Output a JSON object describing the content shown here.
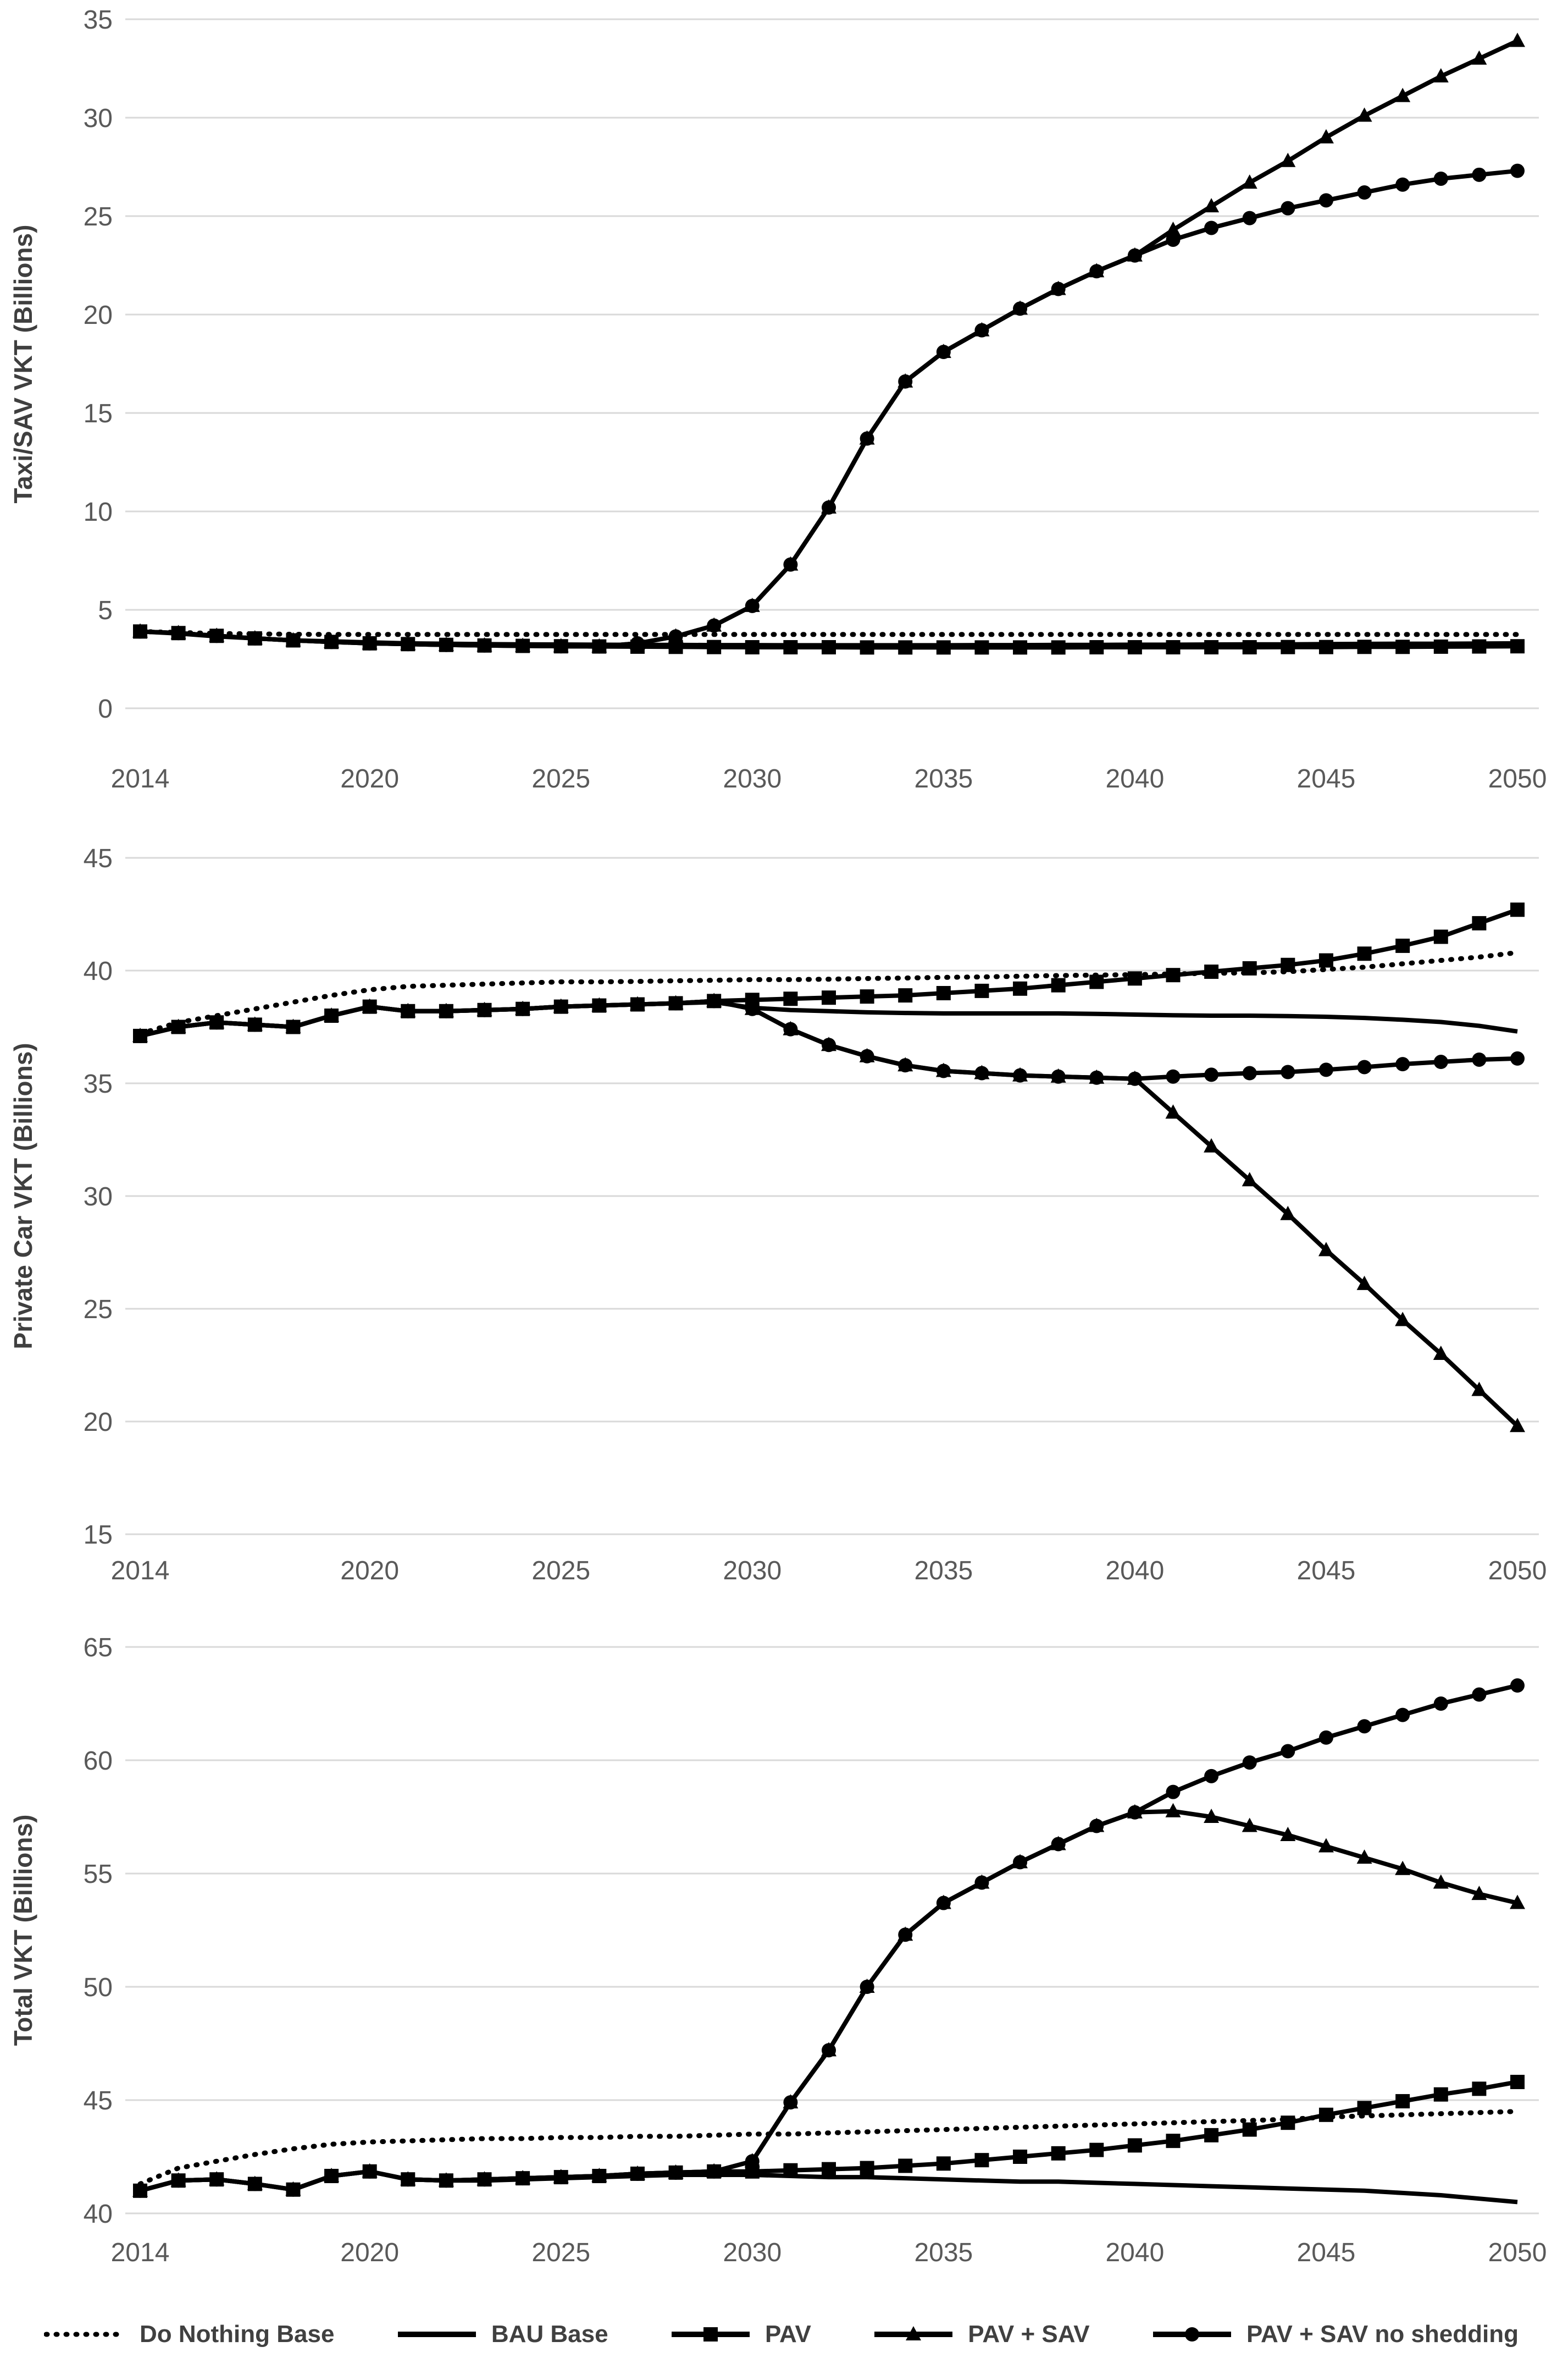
{
  "colors": {
    "series_line": "#000000",
    "gridline": "#d9d9d9",
    "tick_text": "#595959",
    "axis_title_text": "#3f3f3f",
    "legend_text": "#404040",
    "background": "#ffffff"
  },
  "legend": {
    "items": [
      {
        "label": "Do Nothing Base",
        "marker": "none",
        "dash": true
      },
      {
        "label": "BAU Base",
        "marker": "none",
        "dash": false
      },
      {
        "label": "PAV",
        "marker": "square",
        "dash": false
      },
      {
        "label": "PAV + SAV",
        "marker": "triangle",
        "dash": false
      },
      {
        "label": "PAV + SAV no shedding",
        "marker": "circle",
        "dash": false
      }
    ]
  },
  "chart_data": [
    {
      "type": "line",
      "title": "",
      "xlabel": "",
      "ylabel": "Taxi/SAV VKT (Billions)",
      "ylim": [
        0,
        35
      ],
      "yticks": [
        0,
        5,
        10,
        15,
        20,
        25,
        30,
        35
      ],
      "xticks": [
        2014,
        2020,
        2025,
        2030,
        2035,
        2040,
        2045,
        2050
      ],
      "x": [
        2014,
        2015,
        2016,
        2017,
        2018,
        2019,
        2020,
        2021,
        2022,
        2023,
        2024,
        2025,
        2026,
        2027,
        2028,
        2029,
        2030,
        2031,
        2032,
        2033,
        2034,
        2035,
        2036,
        2037,
        2038,
        2039,
        2040,
        2041,
        2042,
        2043,
        2044,
        2045,
        2046,
        2047,
        2048,
        2049,
        2050
      ],
      "grid": true,
      "legend_position": "bottom-shared",
      "series": [
        {
          "name": "Do Nothing Base",
          "marker": "none",
          "dash": true,
          "values": [
            3.9,
            3.85,
            3.8,
            3.78,
            3.76,
            3.75,
            3.75,
            3.75,
            3.75,
            3.75,
            3.75,
            3.75,
            3.75,
            3.75,
            3.75,
            3.75,
            3.75,
            3.75,
            3.75,
            3.75,
            3.75,
            3.75,
            3.75,
            3.75,
            3.75,
            3.75,
            3.75,
            3.75,
            3.75,
            3.75,
            3.75,
            3.75,
            3.75,
            3.75,
            3.75,
            3.75,
            3.75
          ]
        },
        {
          "name": "BAU Base",
          "marker": "none",
          "dash": false,
          "values": [
            3.9,
            3.8,
            3.65,
            3.55,
            3.45,
            3.4,
            3.35,
            3.3,
            3.28,
            3.26,
            3.25,
            3.24,
            3.23,
            3.22,
            3.22,
            3.21,
            3.21,
            3.2,
            3.2,
            3.2,
            3.2,
            3.2,
            3.21,
            3.21,
            3.22,
            3.22,
            3.23,
            3.23,
            3.24,
            3.25,
            3.25,
            3.26,
            3.27,
            3.28,
            3.28,
            3.29,
            3.3
          ]
        },
        {
          "name": "PAV",
          "marker": "square",
          "dash": false,
          "values": [
            3.9,
            3.82,
            3.68,
            3.55,
            3.45,
            3.37,
            3.3,
            3.26,
            3.22,
            3.19,
            3.17,
            3.15,
            3.14,
            3.13,
            3.12,
            3.11,
            3.1,
            3.1,
            3.1,
            3.09,
            3.09,
            3.09,
            3.09,
            3.09,
            3.09,
            3.1,
            3.1,
            3.1,
            3.1,
            3.1,
            3.11,
            3.11,
            3.12,
            3.12,
            3.13,
            3.14,
            3.15
          ]
        },
        {
          "name": "PAV + SAV",
          "marker": "triangle",
          "dash": false,
          "values": [
            3.9,
            3.82,
            3.68,
            3.55,
            3.45,
            3.37,
            3.3,
            3.26,
            3.22,
            3.19,
            3.17,
            3.15,
            3.14,
            3.3,
            3.65,
            4.2,
            5.2,
            7.3,
            10.2,
            13.7,
            16.6,
            18.1,
            19.2,
            20.3,
            21.3,
            22.2,
            23.0,
            24.3,
            25.5,
            26.7,
            27.8,
            29.0,
            30.1,
            31.1,
            32.1,
            33.0,
            33.9
          ]
        },
        {
          "name": "PAV + SAV no shedding",
          "marker": "circle",
          "dash": false,
          "values": [
            3.9,
            3.82,
            3.68,
            3.55,
            3.45,
            3.37,
            3.3,
            3.26,
            3.22,
            3.19,
            3.17,
            3.15,
            3.14,
            3.3,
            3.65,
            4.2,
            5.2,
            7.3,
            10.2,
            13.7,
            16.6,
            18.1,
            19.2,
            20.3,
            21.3,
            22.2,
            23.0,
            23.8,
            24.4,
            24.9,
            25.4,
            25.8,
            26.2,
            26.6,
            26.9,
            27.1,
            27.3
          ]
        }
      ]
    },
    {
      "type": "line",
      "title": "",
      "xlabel": "",
      "ylabel": "Private Car VKT (Billions)",
      "ylim": [
        15,
        45
      ],
      "yticks": [
        15,
        20,
        25,
        30,
        35,
        40,
        45
      ],
      "xticks": [
        2014,
        2020,
        2025,
        2030,
        2035,
        2040,
        2045,
        2050
      ],
      "x": [
        2014,
        2015,
        2016,
        2017,
        2018,
        2019,
        2020,
        2021,
        2022,
        2023,
        2024,
        2025,
        2026,
        2027,
        2028,
        2029,
        2030,
        2031,
        2032,
        2033,
        2034,
        2035,
        2036,
        2037,
        2038,
        2039,
        2040,
        2041,
        2042,
        2043,
        2044,
        2045,
        2046,
        2047,
        2048,
        2049,
        2050
      ],
      "grid": true,
      "legend_position": "bottom-shared",
      "series": [
        {
          "name": "Do Nothing Base",
          "marker": "none",
          "dash": true,
          "values": [
            37.2,
            37.7,
            38.0,
            38.3,
            38.6,
            38.9,
            39.15,
            39.3,
            39.35,
            39.4,
            39.45,
            39.5,
            39.5,
            39.52,
            39.55,
            39.57,
            39.6,
            39.6,
            39.62,
            39.65,
            39.67,
            39.7,
            39.72,
            39.75,
            39.78,
            39.8,
            39.82,
            39.85,
            39.88,
            39.9,
            39.95,
            40.05,
            40.15,
            40.3,
            40.45,
            40.6,
            40.8
          ]
        },
        {
          "name": "BAU Base",
          "marker": "none",
          "dash": false,
          "values": [
            37.1,
            37.5,
            37.7,
            37.6,
            37.5,
            38.0,
            38.4,
            38.2,
            38.2,
            38.25,
            38.3,
            38.4,
            38.45,
            38.5,
            38.55,
            38.6,
            38.35,
            38.25,
            38.2,
            38.15,
            38.12,
            38.1,
            38.1,
            38.1,
            38.1,
            38.08,
            38.05,
            38.02,
            38.0,
            38.0,
            37.98,
            37.95,
            37.9,
            37.82,
            37.72,
            37.55,
            37.3
          ]
        },
        {
          "name": "PAV",
          "marker": "square",
          "dash": false,
          "values": [
            37.1,
            37.5,
            37.7,
            37.6,
            37.5,
            38.0,
            38.4,
            38.2,
            38.2,
            38.25,
            38.3,
            38.4,
            38.45,
            38.5,
            38.55,
            38.65,
            38.7,
            38.75,
            38.8,
            38.85,
            38.9,
            39.0,
            39.1,
            39.2,
            39.35,
            39.5,
            39.65,
            39.8,
            39.95,
            40.1,
            40.25,
            40.45,
            40.75,
            41.1,
            41.5,
            42.1,
            42.7
          ]
        },
        {
          "name": "PAV + SAV",
          "marker": "triangle",
          "dash": false,
          "values": [
            37.1,
            37.5,
            37.7,
            37.6,
            37.5,
            38.0,
            38.4,
            38.2,
            38.2,
            38.25,
            38.3,
            38.4,
            38.45,
            38.5,
            38.55,
            38.65,
            38.3,
            37.4,
            36.7,
            36.2,
            35.8,
            35.55,
            35.45,
            35.35,
            35.3,
            35.25,
            35.2,
            33.7,
            32.2,
            30.7,
            29.2,
            27.6,
            26.1,
            24.5,
            23.0,
            21.4,
            19.8
          ]
        },
        {
          "name": "PAV + SAV no shedding",
          "marker": "circle",
          "dash": false,
          "values": [
            37.1,
            37.5,
            37.7,
            37.6,
            37.5,
            38.0,
            38.4,
            38.2,
            38.2,
            38.25,
            38.3,
            38.4,
            38.45,
            38.5,
            38.55,
            38.65,
            38.3,
            37.4,
            36.7,
            36.2,
            35.8,
            35.55,
            35.45,
            35.35,
            35.3,
            35.25,
            35.2,
            35.3,
            35.38,
            35.45,
            35.5,
            35.6,
            35.72,
            35.85,
            35.95,
            36.05,
            36.1
          ]
        }
      ]
    },
    {
      "type": "line",
      "title": "",
      "xlabel": "",
      "ylabel": "Total VKT (Billions)",
      "ylim": [
        40,
        65
      ],
      "yticks": [
        40,
        45,
        50,
        55,
        60,
        65
      ],
      "xticks": [
        2014,
        2020,
        2025,
        2030,
        2035,
        2040,
        2045,
        2050
      ],
      "x": [
        2014,
        2015,
        2016,
        2017,
        2018,
        2019,
        2020,
        2021,
        2022,
        2023,
        2024,
        2025,
        2026,
        2027,
        2028,
        2029,
        2030,
        2031,
        2032,
        2033,
        2034,
        2035,
        2036,
        2037,
        2038,
        2039,
        2040,
        2041,
        2042,
        2043,
        2044,
        2045,
        2046,
        2047,
        2048,
        2049,
        2050
      ],
      "grid": true,
      "legend_position": "bottom-shared",
      "series": [
        {
          "name": "Do Nothing Base",
          "marker": "none",
          "dash": true,
          "values": [
            41.3,
            42.0,
            42.3,
            42.6,
            42.85,
            43.05,
            43.15,
            43.2,
            43.25,
            43.3,
            43.3,
            43.35,
            43.35,
            43.4,
            43.4,
            43.45,
            43.5,
            43.5,
            43.55,
            43.6,
            43.65,
            43.7,
            43.75,
            43.8,
            43.85,
            43.9,
            43.95,
            44.0,
            44.05,
            44.1,
            44.15,
            44.25,
            44.3,
            44.35,
            44.4,
            44.45,
            44.5
          ]
        },
        {
          "name": "BAU Base",
          "marker": "none",
          "dash": false,
          "values": [
            41.0,
            41.45,
            41.5,
            41.3,
            41.05,
            41.65,
            41.85,
            41.5,
            41.45,
            41.45,
            41.5,
            41.55,
            41.6,
            41.65,
            41.7,
            41.7,
            41.7,
            41.65,
            41.6,
            41.6,
            41.55,
            41.5,
            41.45,
            41.4,
            41.4,
            41.35,
            41.3,
            41.25,
            41.2,
            41.15,
            41.1,
            41.05,
            41.0,
            40.9,
            40.8,
            40.65,
            40.5
          ]
        },
        {
          "name": "PAV",
          "marker": "square",
          "dash": false,
          "values": [
            41.0,
            41.45,
            41.5,
            41.3,
            41.05,
            41.65,
            41.85,
            41.5,
            41.45,
            41.5,
            41.55,
            41.6,
            41.65,
            41.75,
            41.8,
            41.85,
            41.85,
            41.9,
            41.95,
            42.0,
            42.1,
            42.2,
            42.35,
            42.5,
            42.65,
            42.8,
            43.0,
            43.2,
            43.45,
            43.7,
            44.0,
            44.35,
            44.65,
            44.95,
            45.25,
            45.5,
            45.8
          ]
        },
        {
          "name": "PAV + SAV",
          "marker": "triangle",
          "dash": false,
          "values": [
            41.0,
            41.45,
            41.5,
            41.3,
            41.05,
            41.65,
            41.85,
            41.5,
            41.45,
            41.5,
            41.55,
            41.6,
            41.65,
            41.75,
            41.8,
            41.85,
            42.3,
            44.9,
            47.2,
            50.0,
            52.3,
            53.7,
            54.6,
            55.5,
            56.3,
            57.1,
            57.7,
            57.75,
            57.5,
            57.1,
            56.7,
            56.2,
            55.7,
            55.2,
            54.6,
            54.1,
            53.7
          ]
        },
        {
          "name": "PAV + SAV no shedding",
          "marker": "circle",
          "dash": false,
          "values": [
            41.0,
            41.45,
            41.5,
            41.3,
            41.05,
            41.65,
            41.85,
            41.5,
            41.45,
            41.5,
            41.55,
            41.6,
            41.65,
            41.75,
            41.8,
            41.85,
            42.3,
            44.9,
            47.2,
            50.0,
            52.3,
            53.7,
            54.6,
            55.5,
            56.3,
            57.1,
            57.7,
            58.6,
            59.3,
            59.9,
            60.4,
            61.0,
            61.5,
            62.0,
            62.5,
            62.9,
            63.3
          ]
        }
      ]
    }
  ]
}
